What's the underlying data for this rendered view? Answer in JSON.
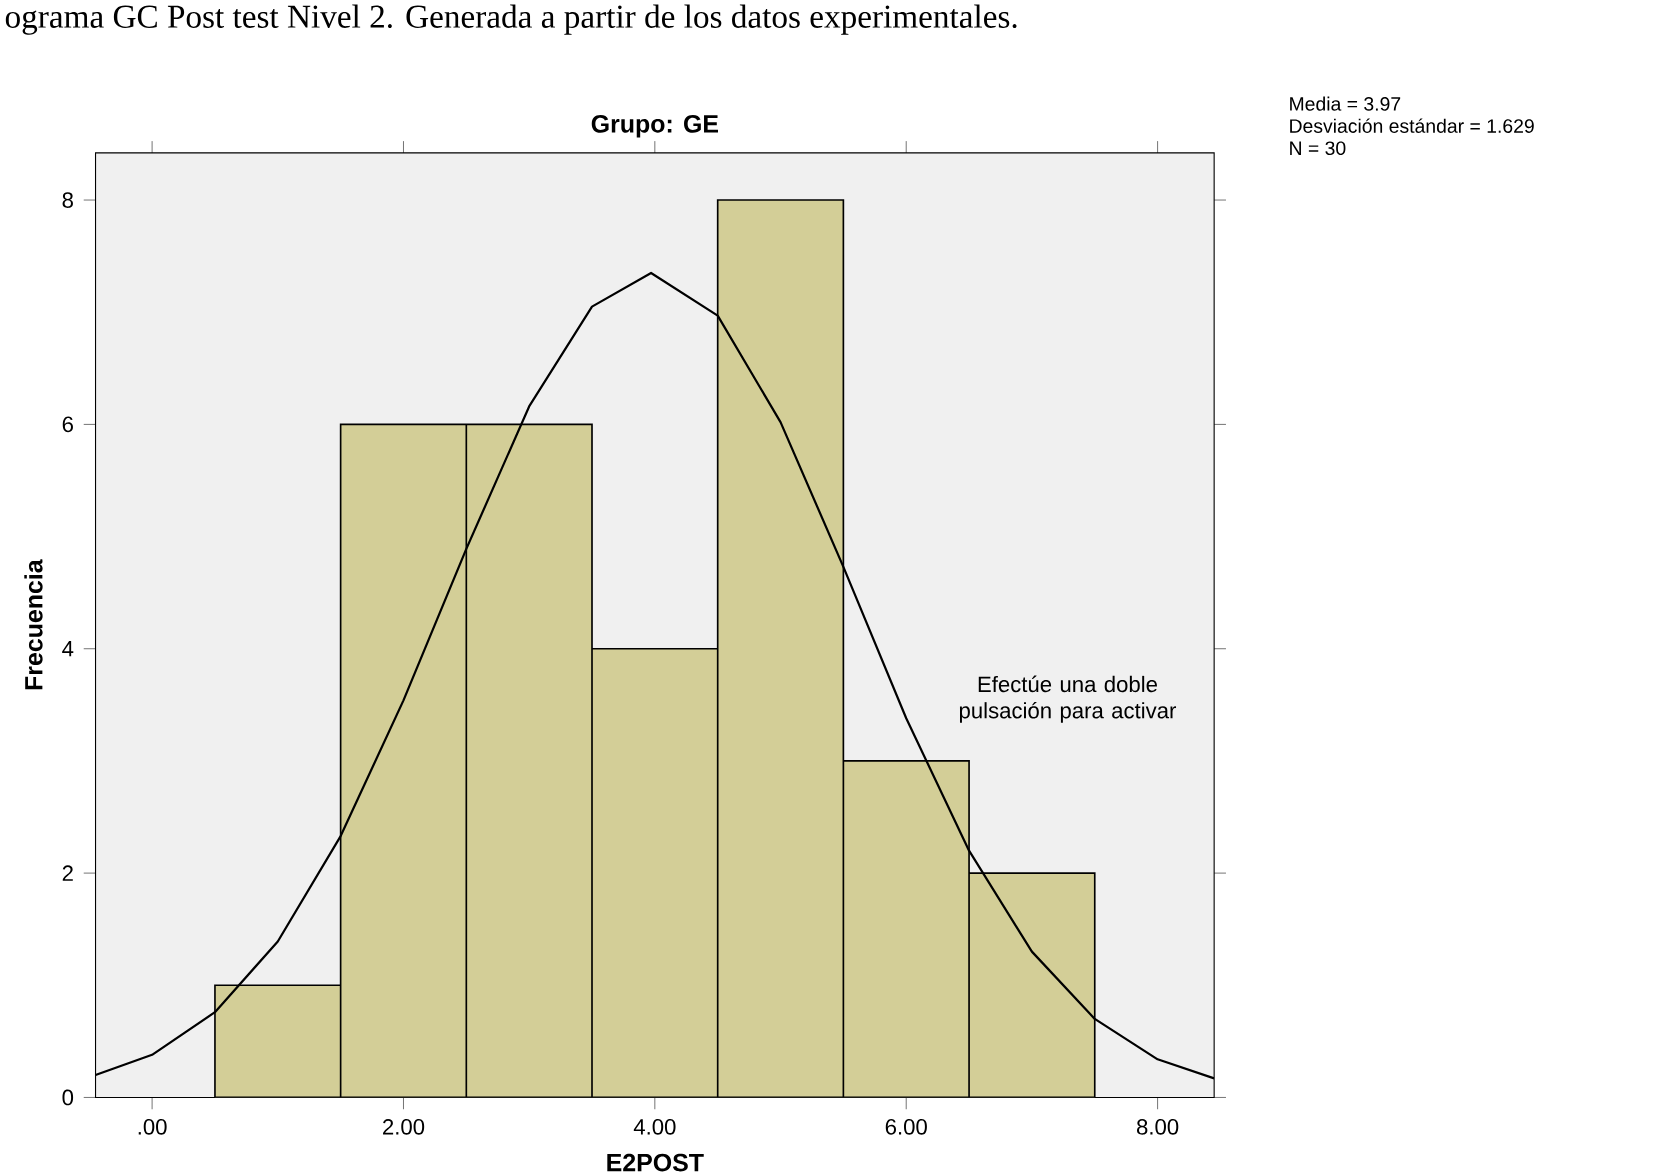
{
  "chart_data": {
    "type": "histogram",
    "title": "Grupo: GE",
    "xlabel": "E2POST",
    "ylabel": "Frecuencia",
    "bins": [
      0.5,
      1.5,
      2.5,
      3.5,
      4.5,
      5.5,
      6.5,
      7.5
    ],
    "values": [
      1,
      6,
      6,
      4,
      8,
      3,
      2
    ],
    "color": "#d3ce97",
    "series": [
      {
        "type": "line",
        "color": "#000000",
        "x": [
          -0.45,
          0.0,
          0.5,
          1.0,
          1.5,
          2.0,
          2.5,
          3.0,
          3.5,
          3.97,
          4.5,
          5.0,
          5.5,
          6.0,
          6.5,
          7.0,
          7.5,
          8.0,
          8.45
        ],
        "values": [
          0.2,
          0.38,
          0.76,
          1.39,
          2.33,
          3.54,
          4.89,
          6.16,
          7.05,
          7.35,
          6.97,
          6.02,
          4.73,
          3.38,
          2.2,
          1.3,
          0.7,
          0.34,
          0.17
        ]
      }
    ],
    "xlim": [
      -0.45,
      8.45
    ],
    "ylim": [
      0,
      8.42
    ],
    "xticks": [
      {
        "value": 0,
        "label": ".00"
      },
      {
        "value": 2,
        "label": "2.00"
      },
      {
        "value": 4,
        "label": "4.00"
      },
      {
        "value": 6,
        "label": "6.00"
      },
      {
        "value": 8,
        "label": "8.00"
      }
    ],
    "yticks": [
      0,
      2,
      4,
      6,
      8
    ],
    "marker": "none",
    "annotations": [
      "ograma GC Post test Nivel 2. Generada a partir de los datos experimentales.",
      "Media = 3.97",
      "Desviación estándar = 1.629",
      "N = 30",
      "Efectúe una doble pulsación para activar"
    ]
  }
}
